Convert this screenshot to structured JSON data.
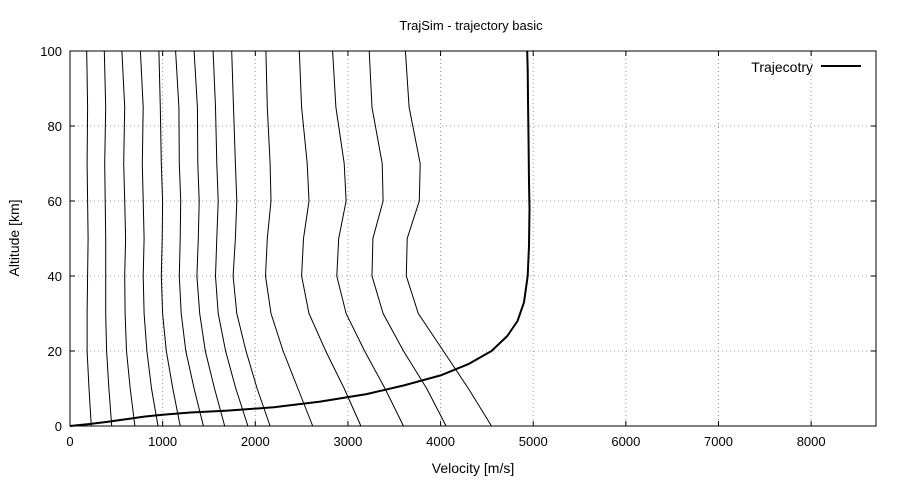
{
  "chart_data": {
    "type": "line",
    "title": "TrajSim - trajectory basic",
    "xlabel": "Velocity [m/s]",
    "ylabel": "Altitude [km]",
    "xlim": [
      0,
      8700
    ],
    "ylim": [
      0,
      100
    ],
    "xticks": [
      0,
      1000,
      2000,
      3000,
      4000,
      5000,
      6000,
      7000,
      8000
    ],
    "yticks": [
      0,
      20,
      40,
      60,
      80,
      100
    ],
    "grid": true,
    "legend_position": "top-right",
    "colors": {
      "series": "#000000",
      "grid": "#999999",
      "axis": "#000000"
    },
    "series": [
      {
        "name": "Trajecotry",
        "x": [
          0,
          200,
          400,
          600,
          800,
          1000,
          1300,
          1700,
          2200,
          2700,
          3200,
          3600,
          4000,
          4300,
          4550,
          4720,
          4830,
          4900,
          4940,
          4955,
          4960,
          4955,
          4950,
          4945,
          4940,
          4935
        ],
        "y": [
          0,
          0.5,
          1.1,
          1.8,
          2.5,
          3.0,
          3.6,
          4.1,
          5.0,
          6.5,
          8.5,
          10.8,
          13.5,
          16.5,
          20.0,
          24.0,
          28.0,
          33.0,
          40.0,
          48.0,
          58.0,
          65.0,
          75.0,
          85.0,
          95.0,
          100.0
        ]
      }
    ],
    "contours": [
      {
        "x": [
          230,
          205,
          185,
          185,
          190,
          195,
          190,
          185,
          190,
          180
        ],
        "y": [
          0,
          10,
          20,
          30,
          40,
          50,
          60,
          70,
          85,
          100
        ]
      },
      {
        "x": [
          450,
          420,
          395,
          385,
          385,
          385,
          380,
          375,
          385,
          370
        ],
        "y": [
          0,
          10,
          20,
          30,
          40,
          50,
          60,
          70,
          85,
          100
        ]
      },
      {
        "x": [
          700,
          650,
          610,
          595,
          590,
          600,
          590,
          580,
          590,
          560
        ],
        "y": [
          0,
          10,
          20,
          30,
          40,
          50,
          60,
          70,
          85,
          100
        ]
      },
      {
        "x": [
          950,
          880,
          830,
          800,
          790,
          800,
          790,
          780,
          790,
          760
        ],
        "y": [
          0,
          10,
          20,
          30,
          40,
          50,
          60,
          70,
          85,
          100
        ]
      },
      {
        "x": [
          1190,
          1110,
          1040,
          1000,
          985,
          995,
          1000,
          985,
          975,
          960
        ],
        "y": [
          0,
          10,
          20,
          30,
          40,
          50,
          60,
          70,
          85,
          100
        ]
      },
      {
        "x": [
          1440,
          1340,
          1250,
          1200,
          1180,
          1190,
          1195,
          1180,
          1175,
          1140
        ],
        "y": [
          0,
          10,
          20,
          30,
          40,
          50,
          60,
          70,
          85,
          100
        ]
      },
      {
        "x": [
          1670,
          1560,
          1460,
          1400,
          1370,
          1385,
          1395,
          1380,
          1375,
          1340
        ],
        "y": [
          0,
          10,
          20,
          30,
          40,
          50,
          60,
          70,
          85,
          100
        ]
      },
      {
        "x": [
          1920,
          1790,
          1680,
          1600,
          1570,
          1585,
          1600,
          1585,
          1570,
          1545
        ],
        "y": [
          0,
          10,
          20,
          30,
          40,
          50,
          60,
          70,
          85,
          100
        ]
      },
      {
        "x": [
          2160,
          2020,
          1900,
          1800,
          1760,
          1785,
          1800,
          1785,
          1765,
          1745
        ],
        "y": [
          0,
          10,
          20,
          30,
          40,
          50,
          60,
          70,
          85,
          100
        ]
      },
      {
        "x": [
          2620,
          2460,
          2300,
          2170,
          2110,
          2130,
          2170,
          2160,
          2130,
          2115
        ],
        "y": [
          0,
          10,
          20,
          30,
          40,
          50,
          60,
          70,
          85,
          100
        ]
      },
      {
        "x": [
          3140,
          2960,
          2760,
          2580,
          2500,
          2520,
          2580,
          2560,
          2500,
          2475
        ],
        "y": [
          0,
          10,
          20,
          30,
          40,
          50,
          60,
          70,
          85,
          100
        ]
      },
      {
        "x": [
          3600,
          3400,
          3180,
          2980,
          2880,
          2900,
          2980,
          2960,
          2870,
          2835
        ],
        "y": [
          0,
          10,
          20,
          30,
          40,
          50,
          60,
          70,
          85,
          100
        ]
      },
      {
        "x": [
          4060,
          3850,
          3600,
          3380,
          3260,
          3270,
          3380,
          3370,
          3260,
          3230
        ],
        "y": [
          0,
          10,
          20,
          30,
          40,
          50,
          60,
          70,
          85,
          100
        ]
      },
      {
        "x": [
          4550,
          4300,
          4030,
          3760,
          3630,
          3640,
          3770,
          3780,
          3660,
          3620
        ],
        "y": [
          0,
          10,
          20,
          30,
          40,
          50,
          60,
          70,
          85,
          100
        ]
      }
    ]
  }
}
